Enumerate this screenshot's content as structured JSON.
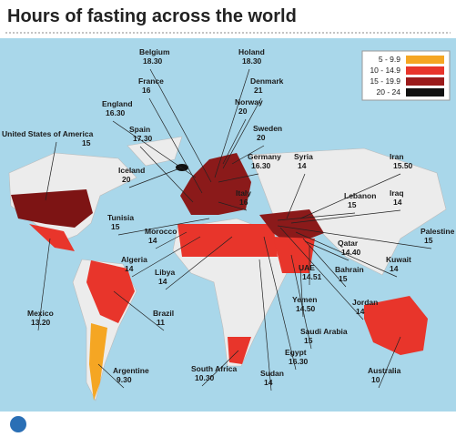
{
  "header": {
    "title": "Hours of fasting across the world"
  },
  "legend": [
    {
      "label": "5 - 9.9",
      "color": "#f5a623"
    },
    {
      "label": "10 - 14.9",
      "color": "#e8352b"
    },
    {
      "label": "15 - 19.9",
      "color": "#9b1b1b"
    },
    {
      "label": "20 - 24",
      "color": "#111111"
    }
  ],
  "countries": [
    {
      "name": "Belgium",
      "hours": "18.30"
    },
    {
      "name": "Holand",
      "hours": "18.30"
    },
    {
      "name": "France",
      "hours": "16"
    },
    {
      "name": "Denmark",
      "hours": "21"
    },
    {
      "name": "England",
      "hours": "16.30"
    },
    {
      "name": "Norway",
      "hours": "20"
    },
    {
      "name": "Spain",
      "hours": "17.30"
    },
    {
      "name": "Sweden",
      "hours": "20"
    },
    {
      "name": "United States of America",
      "hours": "15"
    },
    {
      "name": "Germany",
      "hours": "16.30"
    },
    {
      "name": "Syria",
      "hours": "14"
    },
    {
      "name": "Iran",
      "hours": "15.50"
    },
    {
      "name": "Iceland",
      "hours": "20"
    },
    {
      "name": "Italy",
      "hours": "16"
    },
    {
      "name": "Lebanon",
      "hours": "15"
    },
    {
      "name": "Iraq",
      "hours": "14"
    },
    {
      "name": "Tunisia",
      "hours": "15"
    },
    {
      "name": "Morocco",
      "hours": "14"
    },
    {
      "name": "Palestine",
      "hours": "15"
    },
    {
      "name": "Qatar",
      "hours": "14.40"
    },
    {
      "name": "Kuwait",
      "hours": "14"
    },
    {
      "name": "Algeria",
      "hours": "14"
    },
    {
      "name": "Libya",
      "hours": "14"
    },
    {
      "name": "UAE",
      "hours": "14.51"
    },
    {
      "name": "Bahrain",
      "hours": "15"
    },
    {
      "name": "Yemen",
      "hours": "14.50"
    },
    {
      "name": "Jordan",
      "hours": "14"
    },
    {
      "name": "Mexico",
      "hours": "13.20"
    },
    {
      "name": "Brazil",
      "hours": "11"
    },
    {
      "name": "Saudi Arabia",
      "hours": "15"
    },
    {
      "name": "Egypt",
      "hours": "16.30"
    },
    {
      "name": "Argentine",
      "hours": "9.30"
    },
    {
      "name": "South Africa",
      "hours": "10.30"
    },
    {
      "name": "Sudan",
      "hours": "14"
    },
    {
      "name": "Australia",
      "hours": "10"
    }
  ]
}
